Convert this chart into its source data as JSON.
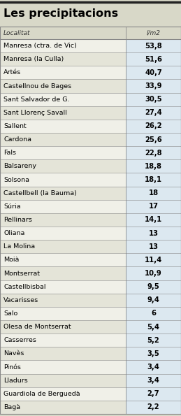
{
  "title": "Les precipitacions",
  "col_header_left": "Localitat",
  "col_header_right": "l/m2",
  "rows": [
    [
      "Manresa (ctra. de Vic)",
      "53,8"
    ],
    [
      "Manresa (la Culla)",
      "51,6"
    ],
    [
      "Artés",
      "40,7"
    ],
    [
      "Castellnou de Bages",
      "33,9"
    ],
    [
      "Sant Salvador de G.",
      "30,5"
    ],
    [
      "Sant Llorenç Savall",
      "27,4"
    ],
    [
      "Sallent",
      "26,2"
    ],
    [
      "Cardona",
      "25,6"
    ],
    [
      "Fals",
      "22,8"
    ],
    [
      "Balsareny",
      "18,8"
    ],
    [
      "Solsona",
      "18,1"
    ],
    [
      "Castellbell (la Bauma)",
      "18"
    ],
    [
      "Súria",
      "17"
    ],
    [
      "Rellinars",
      "14,1"
    ],
    [
      "Oliana",
      "13"
    ],
    [
      "La Molina",
      "13"
    ],
    [
      "Moià",
      "11,4"
    ],
    [
      "Montserrat",
      "10,9"
    ],
    [
      "Castellbisbal",
      "9,5"
    ],
    [
      "Vacarisses",
      "9,4"
    ],
    [
      "Salo",
      "6"
    ],
    [
      "Olesa de Montserrat",
      "5,4"
    ],
    [
      "Casserres",
      "5,2"
    ],
    [
      "Navès",
      "3,5"
    ],
    [
      "Pinós",
      "3,4"
    ],
    [
      "Lladurs",
      "3,4"
    ],
    [
      "Guardiola de Berguedà",
      "2,7"
    ],
    [
      "Bagà",
      "2,2"
    ]
  ],
  "bg_color": "#d8d8c8",
  "title_bg": "#d8d8c8",
  "row_bg_left_odd": "#f0f0e8",
  "row_bg_left_even": "#e4e4d8",
  "row_bg_right": "#dce8f0",
  "header_bg": "#d8d8c8",
  "border_color": "#888888",
  "top_border_color": "#222222",
  "title_fontsize": 11.5,
  "header_fontsize": 6.5,
  "row_fontsize": 6.8,
  "value_fontsize": 7.2,
  "fig_width": 2.59,
  "fig_height": 5.95,
  "col_split": 0.695
}
